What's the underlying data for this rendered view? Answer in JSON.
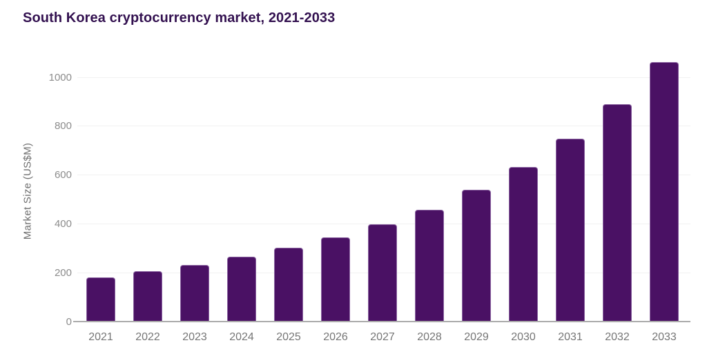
{
  "chart_data": {
    "type": "bar",
    "title": "South Korea cryptocurrency market, 2021-2033",
    "xlabel": "",
    "ylabel": "Market Size (US$M)",
    "categories": [
      "2021",
      "2022",
      "2023",
      "2024",
      "2025",
      "2026",
      "2027",
      "2028",
      "2029",
      "2030",
      "2031",
      "2032",
      "2033"
    ],
    "values": [
      180,
      205,
      232,
      264,
      302,
      345,
      397,
      458,
      538,
      633,
      748,
      888,
      1062
    ],
    "yticks": [
      0,
      200,
      400,
      600,
      800,
      1000
    ],
    "ylim": [
      0,
      1075
    ],
    "grid": "horizontal-light",
    "legend": "none",
    "colors": {
      "bar": "#4A1164",
      "title": "#331150",
      "ytick_label": "#8C8C8C",
      "xtick_label": "#757575",
      "axis_label": "#6E6E6E",
      "gridline": "#F1F1F1",
      "baseline": "#ABABAB",
      "background": "#FFFFFF"
    }
  }
}
